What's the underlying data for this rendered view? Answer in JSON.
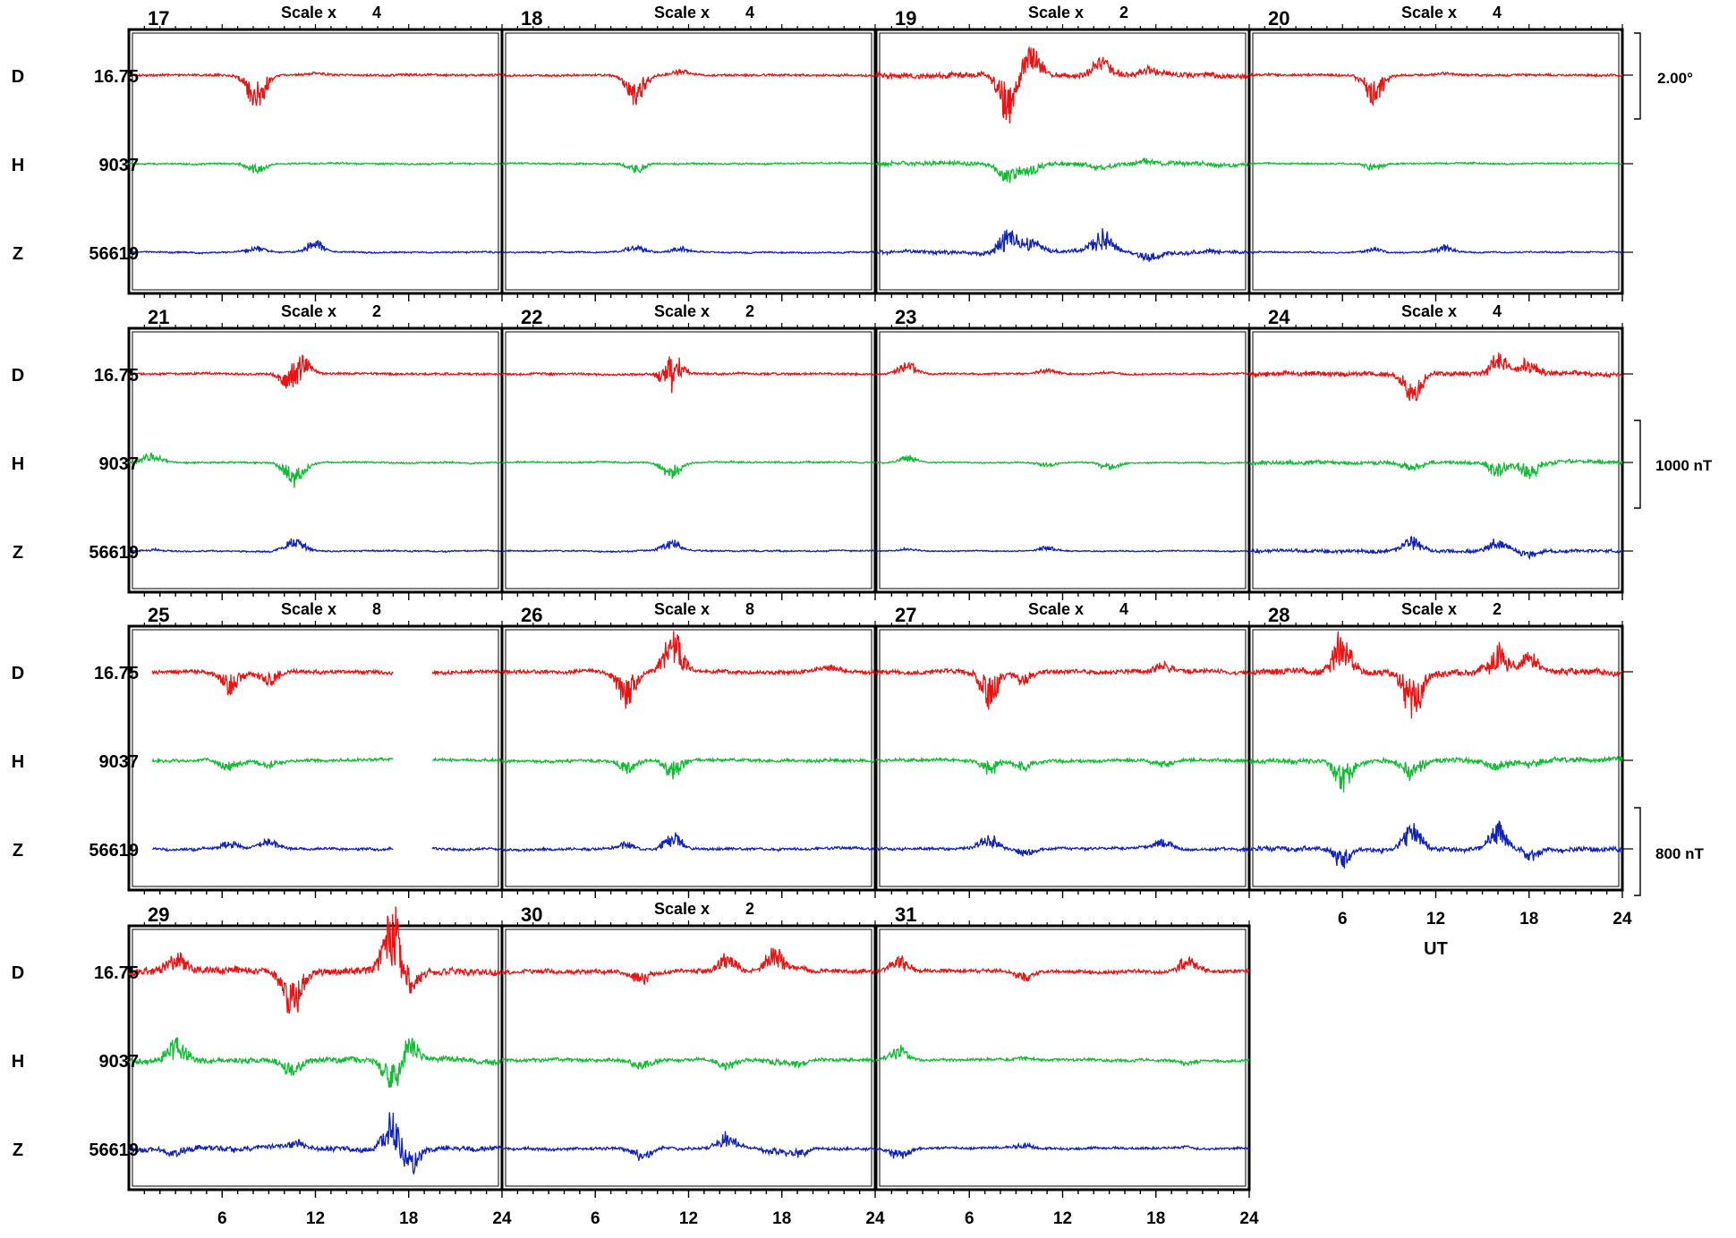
{
  "chart_data": {
    "type": "line",
    "x_axis": {
      "label": "UT",
      "ticks": [
        6,
        12,
        18,
        24
      ],
      "range": [
        0,
        24
      ]
    },
    "row_labels": [
      {
        "component": "D",
        "baseline": "16.75"
      },
      {
        "component": "H",
        "baseline": "9037"
      },
      {
        "component": "Z",
        "baseline": "56619"
      }
    ],
    "series_colors": {
      "D": "#ee1111",
      "H": "#11bb33",
      "Z": "#1122bb"
    },
    "scale_bars": [
      {
        "label": "2.00°",
        "row": 1
      },
      {
        "label": "1000 nT",
        "row": 2
      },
      {
        "label": "800 nT",
        "row": 3
      }
    ],
    "scale_prefix": "Scale x",
    "days": [
      {
        "day": "17",
        "scale": "4",
        "activity": 1.0,
        "events": [
          {
            "t": 8.2,
            "d": -1.4,
            "h": -0.4,
            "z": 0.25
          },
          {
            "t": 12,
            "d": 0.1,
            "h": 0,
            "z": 0.5
          }
        ]
      },
      {
        "day": "18",
        "scale": "4",
        "activity": 1.0,
        "events": [
          {
            "t": 8.6,
            "d": -1.2,
            "h": -0.4,
            "z": 0.3
          },
          {
            "t": 11.5,
            "d": 0.2,
            "h": 0,
            "z": 0.2
          }
        ]
      },
      {
        "day": "19",
        "scale": "2",
        "activity": 2.6,
        "events": [
          {
            "t": 8.5,
            "d": -2.0,
            "h": -0.8,
            "z": 1.0
          },
          {
            "t": 10,
            "d": 1.2,
            "h": -0.5,
            "z": 0.6
          },
          {
            "t": 14.5,
            "d": 0.7,
            "h": -0.2,
            "z": 1.1
          },
          {
            "t": 17.5,
            "d": 0.3,
            "h": 0.2,
            "z": -0.4
          }
        ]
      },
      {
        "day": "20",
        "scale": "4",
        "activity": 1.0,
        "events": [
          {
            "t": 8.0,
            "d": -1.2,
            "h": -0.3,
            "z": 0.2
          },
          {
            "t": 12.5,
            "d": 0.1,
            "h": 0,
            "z": 0.3
          }
        ]
      },
      {
        "day": "21",
        "scale": "2",
        "activity": 1.0,
        "events": [
          {
            "t": 10.5,
            "d": -1.0,
            "h": -0.8,
            "z": 0.4
          },
          {
            "t": 11,
            "d": 1.0,
            "h": -0.3,
            "z": 0.3
          },
          {
            "t": 1.5,
            "d": 0,
            "h": 0.4,
            "z": 0.1
          }
        ]
      },
      {
        "day": "22",
        "scale": "2",
        "activity": 1.0,
        "events": [
          {
            "t": 10.8,
            "d": -0.9,
            "h": -0.5,
            "z": 0.3
          },
          {
            "t": 11,
            "d": 1.0,
            "h": -0.3,
            "z": 0.2
          }
        ]
      },
      {
        "day": "23",
        "scale": "",
        "activity": 0.8,
        "events": [
          {
            "t": 2.0,
            "d": 0.5,
            "h": 0.3,
            "z": 0.1
          },
          {
            "t": 11,
            "d": 0.2,
            "h": -0.2,
            "z": 0.2
          },
          {
            "t": 15,
            "d": 0.1,
            "h": -0.3,
            "z": 0
          }
        ]
      },
      {
        "day": "24",
        "scale": "4",
        "activity": 2.2,
        "events": [
          {
            "t": 10.5,
            "d": -1.2,
            "h": -0.4,
            "z": 0.6
          },
          {
            "t": 16,
            "d": 0.8,
            "h": -0.6,
            "z": 0.5
          },
          {
            "t": 18,
            "d": 0.6,
            "h": -0.7,
            "z": -0.3
          }
        ]
      },
      {
        "day": "25",
        "scale": "8",
        "activity": 1.8,
        "events": [
          {
            "t": 6.5,
            "d": -1.0,
            "h": -0.5,
            "z": 0.3
          },
          {
            "t": 9,
            "d": -0.6,
            "h": -0.3,
            "z": 0.4
          }
        ],
        "gap": [
          17,
          19.5
        ]
      },
      {
        "day": "26",
        "scale": "8",
        "activity": 1.8,
        "events": [
          {
            "t": 8.0,
            "d": -1.4,
            "h": -0.5,
            "z": 0.3
          },
          {
            "t": 11,
            "d": 1.8,
            "h": -0.8,
            "z": 0.7
          },
          {
            "t": 21,
            "d": 0.3,
            "h": 0.1,
            "z": 0
          }
        ]
      },
      {
        "day": "27",
        "scale": "4",
        "activity": 1.9,
        "events": [
          {
            "t": 7.3,
            "d": -1.5,
            "h": -0.6,
            "z": 0.6
          },
          {
            "t": 9.5,
            "d": -0.6,
            "h": -0.4,
            "z": -0.3
          },
          {
            "t": 18.5,
            "d": 0.4,
            "h": -0.3,
            "z": 0.4
          }
        ]
      },
      {
        "day": "28",
        "scale": "2",
        "activity": 3.0,
        "events": [
          {
            "t": 6.0,
            "d": 1.8,
            "h": -1.2,
            "z": -0.8
          },
          {
            "t": 10.5,
            "d": -2.2,
            "h": -0.8,
            "z": 1.0
          },
          {
            "t": 16,
            "d": 1.2,
            "h": -0.4,
            "z": 1.0
          },
          {
            "t": 18,
            "d": 0.8,
            "h": -0.3,
            "z": -0.5
          }
        ]
      },
      {
        "day": "29",
        "scale": "",
        "activity": 3.4,
        "events": [
          {
            "t": 3,
            "d": 0.8,
            "h": 1.0,
            "z": -0.4
          },
          {
            "t": 10.5,
            "d": -1.8,
            "h": -0.6,
            "z": 0.4
          },
          {
            "t": 17,
            "d": 2.8,
            "h": -1.4,
            "z": 1.6
          },
          {
            "t": 18,
            "d": -1.0,
            "h": 1.0,
            "z": -1.2
          }
        ]
      },
      {
        "day": "30",
        "scale": "2",
        "activity": 2.0,
        "events": [
          {
            "t": 9,
            "d": -0.6,
            "h": -0.4,
            "z": -0.6
          },
          {
            "t": 14.5,
            "d": 0.8,
            "h": -0.4,
            "z": 0.7
          },
          {
            "t": 17.5,
            "d": 1.0,
            "h": -0.2,
            "z": -0.2
          },
          {
            "t": 19,
            "d": 0.2,
            "h": -0.3,
            "z": -0.4
          }
        ]
      },
      {
        "day": "31",
        "scale": "",
        "activity": 1.6,
        "events": [
          {
            "t": 1.5,
            "d": 0.6,
            "h": 0.6,
            "z": -0.5
          },
          {
            "t": 9.5,
            "d": -0.4,
            "h": 0.1,
            "z": 0.2
          },
          {
            "t": 20,
            "d": 0.6,
            "h": -0.2,
            "z": 0.1
          }
        ]
      }
    ]
  }
}
